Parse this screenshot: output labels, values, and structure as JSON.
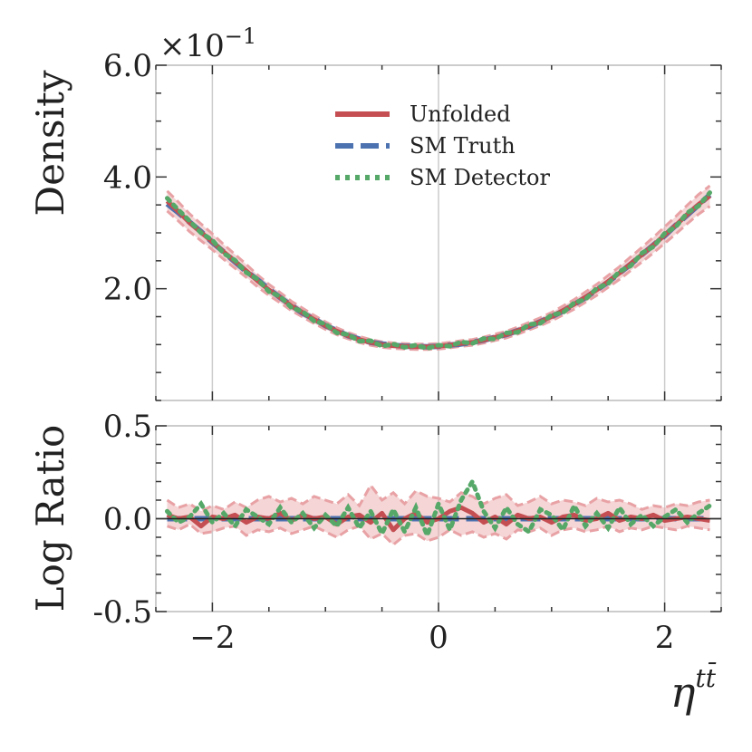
{
  "chart_data": [
    {
      "type": "line",
      "panel": "main",
      "ylabel": "Density",
      "y_exponent_label": "×10",
      "y_exponent_power": "−1",
      "xlim": [
        -2.5,
        2.5
      ],
      "ylim": [
        0.0,
        0.6
      ],
      "yticks": [
        0.2,
        0.4,
        0.6
      ],
      "ytick_labels": [
        "2.0",
        "4.0",
        "6.0"
      ],
      "grid": "vertical",
      "legend_position": "top-center",
      "legend": [
        "Unfolded",
        "SM Truth",
        "SM Detector"
      ],
      "colors": {
        "unfolded": "#c44e52",
        "truth": "#4c72b0",
        "detector": "#55a868",
        "band": "#e8a2a5"
      },
      "x": [
        -2.4,
        -2.3,
        -2.2,
        -2.1,
        -2.0,
        -1.9,
        -1.8,
        -1.7,
        -1.6,
        -1.5,
        -1.4,
        -1.3,
        -1.2,
        -1.1,
        -1.0,
        -0.9,
        -0.8,
        -0.7,
        -0.6,
        -0.5,
        -0.4,
        -0.3,
        -0.2,
        -0.1,
        0.0,
        0.1,
        0.2,
        0.3,
        0.4,
        0.5,
        0.6,
        0.7,
        0.8,
        0.9,
        1.0,
        1.1,
        1.2,
        1.3,
        1.4,
        1.5,
        1.6,
        1.7,
        1.8,
        1.9,
        2.0,
        2.1,
        2.2,
        2.3,
        2.4
      ],
      "series": [
        {
          "name": "Unfolded",
          "values": [
            0.357,
            0.338,
            0.318,
            0.301,
            0.284,
            0.266,
            0.249,
            0.232,
            0.214,
            0.198,
            0.184,
            0.169,
            0.157,
            0.145,
            0.134,
            0.124,
            0.116,
            0.109,
            0.104,
            0.1,
            0.098,
            0.097,
            0.096,
            0.096,
            0.097,
            0.099,
            0.102,
            0.104,
            0.108,
            0.113,
            0.118,
            0.125,
            0.133,
            0.141,
            0.15,
            0.161,
            0.172,
            0.185,
            0.198,
            0.213,
            0.228,
            0.245,
            0.261,
            0.278,
            0.296,
            0.314,
            0.333,
            0.351,
            0.366
          ]
        },
        {
          "name": "SM Truth",
          "values": [
            0.352,
            0.336,
            0.319,
            0.302,
            0.283,
            0.266,
            0.248,
            0.231,
            0.216,
            0.199,
            0.184,
            0.17,
            0.156,
            0.146,
            0.134,
            0.125,
            0.116,
            0.11,
            0.104,
            0.101,
            0.099,
            0.097,
            0.097,
            0.096,
            0.097,
            0.099,
            0.101,
            0.104,
            0.108,
            0.113,
            0.118,
            0.125,
            0.132,
            0.141,
            0.15,
            0.16,
            0.172,
            0.184,
            0.198,
            0.212,
            0.228,
            0.244,
            0.261,
            0.278,
            0.295,
            0.314,
            0.332,
            0.35,
            0.368
          ]
        },
        {
          "name": "SM Detector",
          "values": [
            0.362,
            0.341,
            0.321,
            0.3,
            0.287,
            0.263,
            0.251,
            0.229,
            0.217,
            0.195,
            0.186,
            0.166,
            0.159,
            0.142,
            0.137,
            0.121,
            0.118,
            0.106,
            0.107,
            0.097,
            0.101,
            0.095,
            0.099,
            0.093,
            0.099,
            0.097,
            0.105,
            0.102,
            0.111,
            0.11,
            0.121,
            0.122,
            0.136,
            0.138,
            0.153,
            0.157,
            0.175,
            0.181,
            0.201,
            0.209,
            0.231,
            0.241,
            0.264,
            0.275,
            0.299,
            0.311,
            0.336,
            0.348,
            0.372
          ]
        }
      ],
      "band_relative_error": 0.05
    },
    {
      "type": "line",
      "panel": "ratio",
      "xlabel": "η",
      "xlabel_superscript": "tt̄",
      "ylabel": "Log Ratio",
      "xlim": [
        -2.5,
        2.5
      ],
      "ylim": [
        -0.5,
        0.5
      ],
      "xticks": [
        -2,
        0,
        2
      ],
      "xtick_labels": [
        "−2",
        "0",
        "2"
      ],
      "yticks": [
        -0.5,
        0.0,
        0.5
      ],
      "ytick_labels": [
        "-0.5",
        "0.0",
        "0.5"
      ],
      "grid": "vertical",
      "x": [
        -2.4,
        -2.3,
        -2.2,
        -2.1,
        -2.0,
        -1.9,
        -1.8,
        -1.7,
        -1.6,
        -1.5,
        -1.4,
        -1.3,
        -1.2,
        -1.1,
        -1.0,
        -0.9,
        -0.8,
        -0.7,
        -0.6,
        -0.5,
        -0.4,
        -0.3,
        -0.2,
        -0.1,
        0.0,
        0.1,
        0.2,
        0.3,
        0.4,
        0.5,
        0.6,
        0.7,
        0.8,
        0.9,
        1.0,
        1.1,
        1.2,
        1.3,
        1.4,
        1.5,
        1.6,
        1.7,
        1.8,
        1.9,
        2.0,
        2.1,
        2.2,
        2.3,
        2.4
      ],
      "series": [
        {
          "name": "Unfolded",
          "values": [
            0.02,
            0.0,
            0.01,
            -0.04,
            0.01,
            0.0,
            0.02,
            -0.02,
            0.01,
            0.0,
            0.03,
            -0.01,
            0.02,
            0.0,
            0.01,
            -0.03,
            0.01,
            0.02,
            -0.02,
            0.03,
            -0.06,
            0.0,
            0.03,
            -0.02,
            0.0,
            0.04,
            0.06,
            0.03,
            -0.02,
            0.01,
            -0.03,
            0.02,
            0.0,
            0.01,
            -0.02,
            0.01,
            0.02,
            -0.01,
            0.0,
            0.03,
            -0.01,
            0.01,
            0.0,
            0.02,
            -0.01,
            0.0,
            0.01,
            0.0,
            -0.01
          ]
        },
        {
          "name": "SM Truth",
          "values": [
            0,
            0,
            0,
            0,
            0,
            0,
            0,
            0,
            0,
            0,
            0,
            0,
            0,
            0,
            0,
            0,
            0,
            0,
            0,
            0,
            0,
            0,
            0,
            0,
            0,
            0,
            0,
            0,
            0,
            0,
            0,
            0,
            0,
            0,
            0,
            0,
            0,
            0,
            0,
            0,
            0,
            0,
            0,
            0,
            0,
            0,
            0,
            0,
            0
          ]
        },
        {
          "name": "SM Detector",
          "values": [
            0.04,
            -0.02,
            0.01,
            0.08,
            -0.02,
            0.03,
            -0.04,
            0.05,
            0.01,
            -0.03,
            0.06,
            -0.02,
            0.03,
            -0.05,
            0.02,
            -0.04,
            0.06,
            -0.05,
            0.04,
            -0.08,
            0.05,
            -0.07,
            0.06,
            -0.09,
            0.08,
            -0.06,
            0.1,
            0.2,
            0.04,
            -0.05,
            0.06,
            -0.03,
            -0.07,
            0.05,
            0.02,
            -0.06,
            0.07,
            -0.04,
            0.03,
            -0.05,
            0.06,
            -0.03,
            0.02,
            -0.04,
            0.01,
            0.05,
            -0.02,
            0.03,
            0.07
          ]
        }
      ],
      "band_upper": [
        0.1,
        0.06,
        0.08,
        0.04,
        0.07,
        0.05,
        0.09,
        0.06,
        0.1,
        0.12,
        0.09,
        0.11,
        0.08,
        0.12,
        0.1,
        0.08,
        0.13,
        0.07,
        0.18,
        0.1,
        0.14,
        0.08,
        0.15,
        0.12,
        0.11,
        0.09,
        0.14,
        0.12,
        0.08,
        0.11,
        0.13,
        0.07,
        0.09,
        0.12,
        0.08,
        0.1,
        0.09,
        0.07,
        0.11,
        0.09,
        0.1,
        0.08,
        0.05,
        0.07,
        0.06,
        0.08,
        0.07,
        0.09,
        0.1
      ],
      "band_lower": [
        -0.04,
        -0.06,
        -0.03,
        -0.08,
        -0.07,
        -0.05,
        -0.04,
        -0.09,
        -0.06,
        -0.07,
        -0.05,
        -0.08,
        -0.06,
        -0.04,
        -0.07,
        -0.1,
        -0.06,
        -0.04,
        -0.11,
        -0.08,
        -0.14,
        -0.09,
        -0.08,
        -0.12,
        -0.1,
        -0.06,
        -0.09,
        -0.07,
        -0.1,
        -0.08,
        -0.11,
        -0.06,
        -0.07,
        -0.05,
        -0.09,
        -0.06,
        -0.05,
        -0.07,
        -0.06,
        -0.04,
        -0.07,
        -0.05,
        -0.06,
        -0.04,
        -0.05,
        -0.06,
        -0.04,
        -0.05,
        -0.06
      ]
    }
  ]
}
